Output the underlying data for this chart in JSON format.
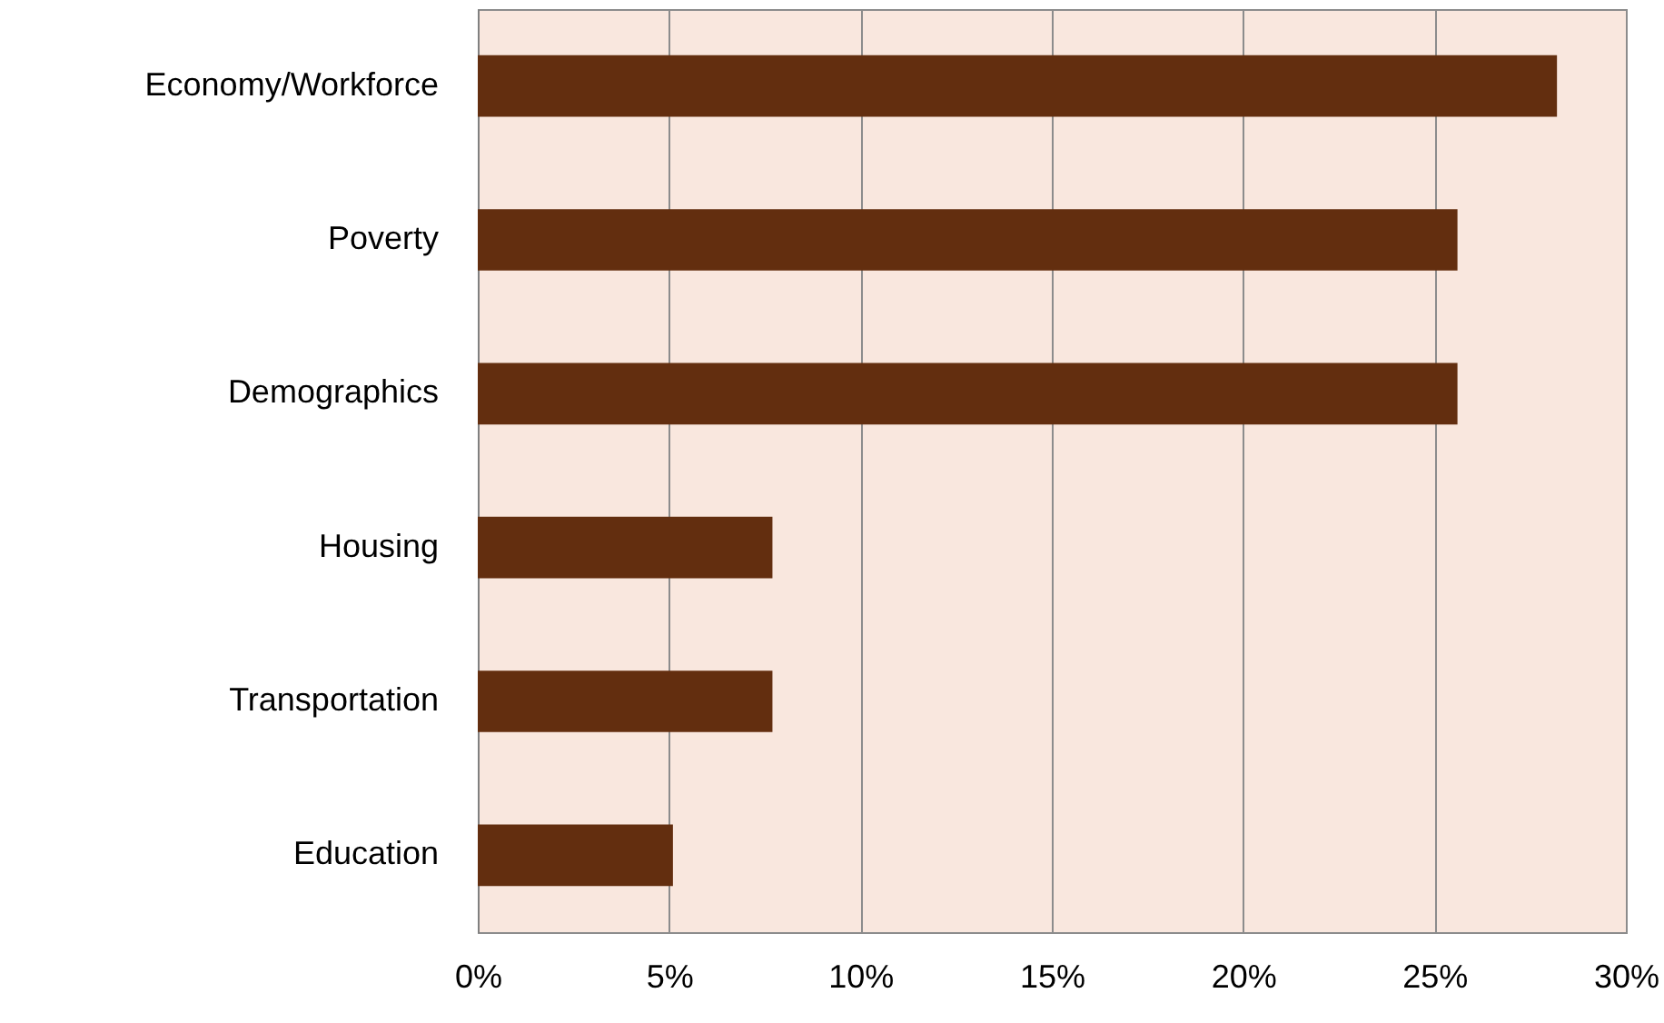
{
  "chart_data": {
    "type": "bar",
    "orientation": "horizontal",
    "categories": [
      "Economy/Workforce",
      "Poverty",
      "Demographics",
      "Housing",
      "Transportation",
      "Education"
    ],
    "values": [
      28.2,
      25.6,
      25.6,
      7.7,
      7.7,
      5.1
    ],
    "color": "#632e0f",
    "xlim": [
      0,
      30
    ],
    "xticks": [
      {
        "value": 0,
        "label": "0%"
      },
      {
        "value": 5,
        "label": "5%"
      },
      {
        "value": 10,
        "label": "10%"
      },
      {
        "value": 15,
        "label": "15%"
      },
      {
        "value": 20,
        "label": "20%"
      },
      {
        "value": 25,
        "label": "25%"
      },
      {
        "value": 30,
        "label": "30%"
      }
    ],
    "grid": "x"
  }
}
